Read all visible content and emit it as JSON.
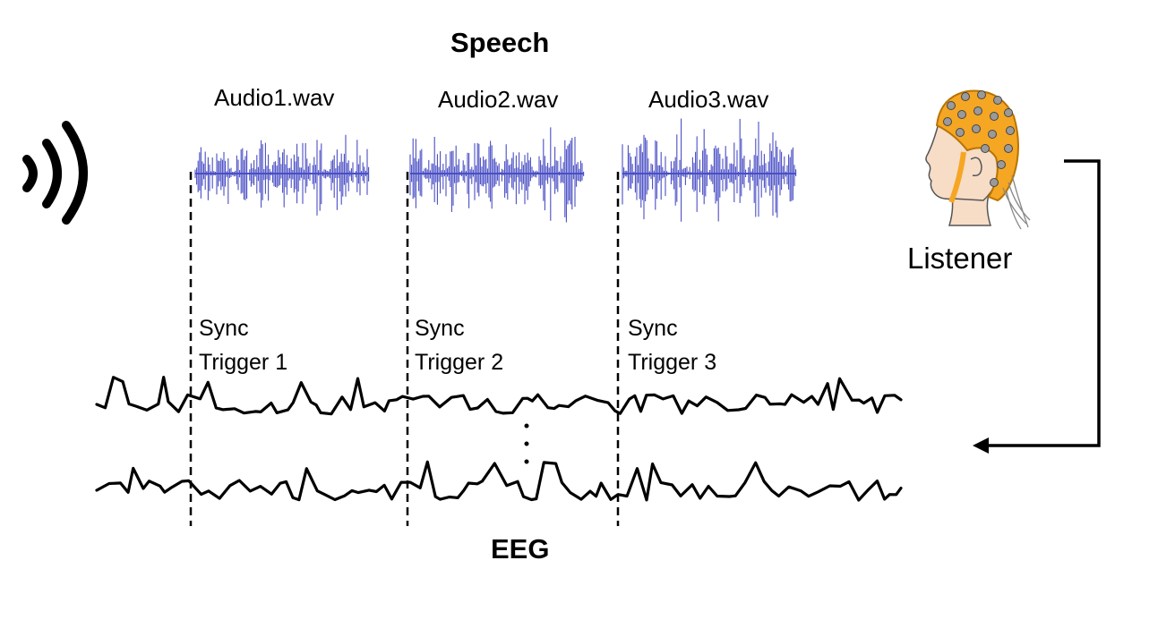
{
  "titles": {
    "top": "Speech",
    "bottom": "EEG"
  },
  "audio_files": [
    "Audio1.wav",
    "Audio2.wav",
    "Audio3.wav"
  ],
  "sync_triggers": [
    {
      "line1": "Sync",
      "line2": "Trigger 1"
    },
    {
      "line1": "Sync",
      "line2": "Trigger 2"
    },
    {
      "line1": "Sync",
      "line2": "Trigger 3"
    }
  ],
  "listener_label": "Listener",
  "icons": {
    "speaker": "sound-waves-icon",
    "listener": "eeg-cap-head-icon"
  },
  "colors": {
    "waveform": "#4a4fc4",
    "eeg_trace": "#000000",
    "cap": "#f5a623",
    "skin": "#f7dcc6"
  }
}
